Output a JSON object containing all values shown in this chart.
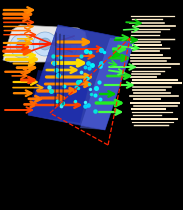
{
  "figsize": [
    1.83,
    2.1
  ],
  "dpi": 100,
  "bg_color": "#000000",
  "paper_color": "#e8e8e8",
  "paper_edge_color": "#aaaaaa",
  "cell_color": "#aaddff",
  "cell_edge_color": "#5599bb",
  "surface_main_color": "#3344cc",
  "surface_right_color": "#4466dd",
  "surface_lower_color": "#2233aa",
  "red_dashed_color": "#ff2200",
  "orange_colors": [
    "#ff4400",
    "#ff6600",
    "#ff7700",
    "#ff8800",
    "#ffaa00",
    "#ffcc00",
    "#ffdd00",
    "#ff5500",
    "#ff3300",
    "#ff9900",
    "#ffbb00",
    "#ff4400",
    "#ff6600",
    "#ff8800"
  ],
  "green_colors": [
    "#44ff44",
    "#22ee22",
    "#00cc00",
    "#44ff44",
    "#22dd22",
    "#55ff55",
    "#11cc11",
    "#33ee33",
    "#00bb00"
  ],
  "cream_color": "#ffeecc",
  "cyan_color": "#00ffff"
}
